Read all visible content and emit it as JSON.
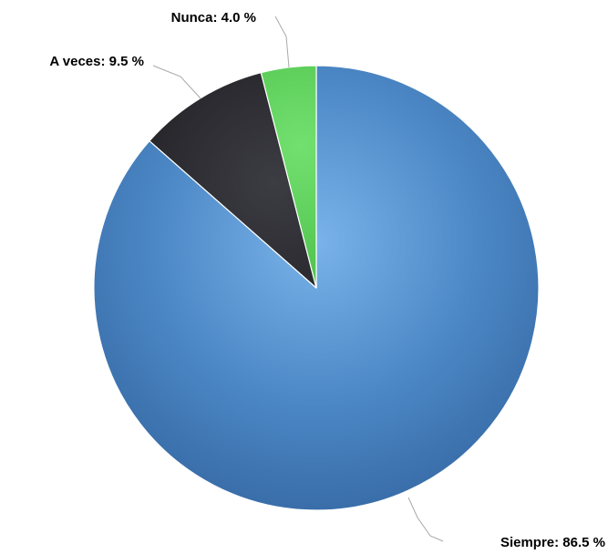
{
  "chart_data": {
    "type": "pie",
    "categories": [
      "Siempre",
      "A veces",
      "Nunca"
    ],
    "values": [
      86.5,
      9.5,
      4.0
    ],
    "unit": "%",
    "labels": [
      "Siempre: 86.5 %",
      "A veces: 9.5 %",
      "Nunca: 4.0 %"
    ],
    "colors": {
      "Siempre": "#4a86c5",
      "A veces": "#2b2b30",
      "Nunca": "#5cd45a"
    },
    "start_angle": "12 o'clock",
    "direction": "clockwise",
    "legend": "none",
    "title": ""
  }
}
